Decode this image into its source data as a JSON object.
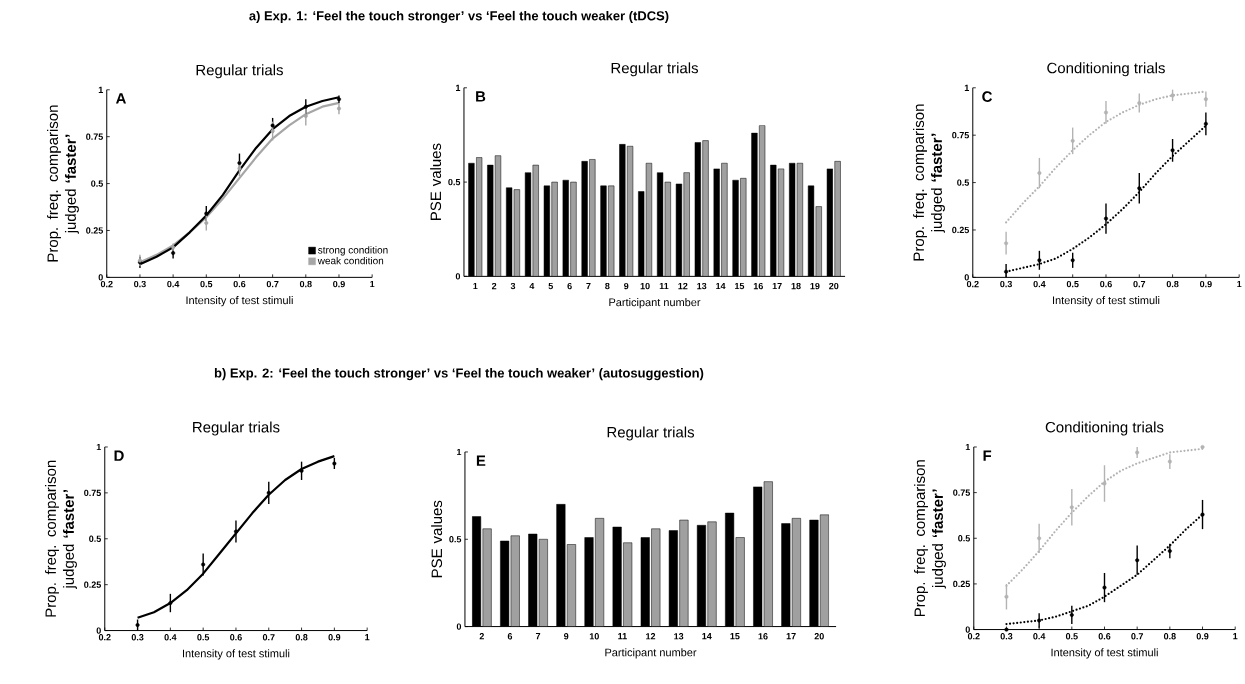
{
  "chart_data": [
    {
      "type": "scatter",
      "title": "Regular trials",
      "subtitle": "a) Exp. 1: ‘Feel the touch stronger’ vs ‘Feel the touch weaker (tDCS)",
      "xlabel": "Intensity of test stimuli",
      "ylabel": "Prop. freq. comparison judged **‘faster’**",
      "annotations": [
        "A"
      ],
      "x": [
        0.3,
        0.4,
        0.5,
        0.6,
        0.7,
        0.8,
        0.9
      ],
      "xlim": [
        0.2,
        1
      ],
      "ylim": [
        0,
        1
      ],
      "xticks": [
        0.2,
        0.3,
        0.4,
        0.5,
        0.6,
        0.7,
        0.8,
        0.9,
        1
      ],
      "yticks": [
        0,
        0.25,
        0.5,
        0.75,
        1
      ],
      "legend": "bottom right",
      "series": [
        {
          "type": "line",
          "marker": "none",
          "color": "#a6a6a6",
          "line_style": "solid",
          "x": [
            0.3,
            0.35,
            0.4,
            0.45,
            0.5,
            0.55,
            0.6,
            0.65,
            0.7,
            0.75,
            0.8,
            0.85,
            0.9
          ],
          "values": [
            0.08,
            0.12,
            0.17,
            0.24,
            0.32,
            0.42,
            0.53,
            0.64,
            0.74,
            0.81,
            0.87,
            0.91,
            0.93
          ]
        },
        {
          "type": "line",
          "marker": "none",
          "color": "#000000",
          "line_style": "solid",
          "x": [
            0.3,
            0.35,
            0.4,
            0.45,
            0.5,
            0.55,
            0.6,
            0.65,
            0.7,
            0.75,
            0.8,
            0.85,
            0.9
          ],
          "values": [
            0.07,
            0.11,
            0.16,
            0.24,
            0.33,
            0.44,
            0.57,
            0.69,
            0.79,
            0.86,
            0.91,
            0.94,
            0.96
          ]
        },
        {
          "name": "strong condition",
          "marker": "circle",
          "color": "#000000",
          "values": [
            0.08,
            0.13,
            0.34,
            0.61,
            0.81,
            0.91,
            0.95
          ],
          "errors": [
            0.03,
            0.03,
            0.04,
            0.05,
            0.04,
            0.04,
            0.02
          ]
        },
        {
          "name": "weak condition",
          "marker": "circle",
          "color": "#a6a6a6",
          "values": [
            0.09,
            0.16,
            0.29,
            0.58,
            0.78,
            0.86,
            0.9
          ],
          "errors": [
            0.03,
            0.02,
            0.04,
            0.04,
            0.05,
            0.05,
            0.03
          ]
        }
      ]
    },
    {
      "type": "bar",
      "title": "Regular trials",
      "xlabel": "Participant number",
      "ylabel": "PSE values",
      "annotations": [
        "B"
      ],
      "ylim": [
        0,
        1
      ],
      "yticks": [
        0,
        0.5,
        1
      ],
      "categories": [
        "1",
        "2",
        "3",
        "4",
        "5",
        "6",
        "7",
        "8",
        "9",
        "10",
        "11",
        "12",
        "13",
        "14",
        "15",
        "16",
        "17",
        "18",
        "19",
        "20"
      ],
      "series": [
        {
          "color": "#000000",
          "values": [
            0.6,
            0.59,
            0.47,
            0.55,
            0.48,
            0.51,
            0.61,
            0.48,
            0.7,
            0.45,
            0.55,
            0.49,
            0.71,
            0.57,
            0.51,
            0.76,
            0.59,
            0.6,
            0.48,
            0.57
          ]
        },
        {
          "color": "#a0a0a0",
          "values": [
            0.63,
            0.64,
            0.46,
            0.59,
            0.5,
            0.5,
            0.62,
            0.48,
            0.69,
            0.6,
            0.5,
            0.55,
            0.72,
            0.6,
            0.52,
            0.8,
            0.57,
            0.6,
            0.37,
            0.61
          ]
        }
      ]
    },
    {
      "type": "scatter",
      "title": "Conditioning trials",
      "xlabel": "Intensity of test stimuli",
      "ylabel": "Prop. freq. comparison judged **‘faster’**",
      "annotations": [
        "C"
      ],
      "x": [
        0.3,
        0.4,
        0.5,
        0.6,
        0.7,
        0.8,
        0.9
      ],
      "xlim": [
        0.2,
        1
      ],
      "ylim": [
        0,
        1
      ],
      "xticks": [
        0.2,
        0.3,
        0.4,
        0.5,
        0.6,
        0.7,
        0.8,
        0.9,
        1
      ],
      "yticks": [
        0,
        0.25,
        0.5,
        0.75,
        1
      ],
      "series": [
        {
          "type": "line",
          "marker": "none",
          "color": "#b3b3b3",
          "line_style": "dotted",
          "x": [
            0.3,
            0.35,
            0.4,
            0.45,
            0.5,
            0.55,
            0.6,
            0.65,
            0.7,
            0.75,
            0.8,
            0.85,
            0.9
          ],
          "values": [
            0.29,
            0.39,
            0.48,
            0.58,
            0.67,
            0.75,
            0.82,
            0.87,
            0.91,
            0.94,
            0.96,
            0.97,
            0.98
          ]
        },
        {
          "type": "line",
          "marker": "none",
          "color": "#000000",
          "line_style": "dotted",
          "x": [
            0.3,
            0.35,
            0.4,
            0.45,
            0.5,
            0.55,
            0.6,
            0.65,
            0.7,
            0.75,
            0.8,
            0.85,
            0.9
          ],
          "values": [
            0.03,
            0.05,
            0.07,
            0.1,
            0.15,
            0.21,
            0.28,
            0.36,
            0.45,
            0.55,
            0.64,
            0.72,
            0.8
          ]
        },
        {
          "marker": "circle",
          "color": "#b3b3b3",
          "values": [
            0.18,
            0.55,
            0.72,
            0.87,
            0.92,
            0.96,
            0.94
          ],
          "errors": [
            0.06,
            0.08,
            0.07,
            0.06,
            0.05,
            0.03,
            0.04
          ]
        },
        {
          "marker": "circle",
          "color": "#000000",
          "values": [
            0.03,
            0.09,
            0.09,
            0.31,
            0.47,
            0.67,
            0.81
          ],
          "errors": [
            0.04,
            0.05,
            0.04,
            0.08,
            0.08,
            0.06,
            0.06
          ]
        }
      ]
    },
    {
      "type": "scatter",
      "title": "Regular trials",
      "subtitle": "b) Exp. 2: ‘Feel the touch stronger’ vs ‘Feel the touch weaker’ (autosuggestion)",
      "xlabel": "Intensity of test stimuli",
      "ylabel": "Prop. freq. comparison judged **‘faster’**",
      "annotations": [
        "D"
      ],
      "x": [
        0.3,
        0.4,
        0.5,
        0.6,
        0.7,
        0.8,
        0.9
      ],
      "xlim": [
        0.2,
        1
      ],
      "ylim": [
        0,
        1
      ],
      "xticks": [
        0.2,
        0.3,
        0.4,
        0.5,
        0.6,
        0.7,
        0.8,
        0.9,
        1
      ],
      "yticks": [
        0,
        0.25,
        0.5,
        0.75,
        1
      ],
      "series": [
        {
          "type": "line",
          "marker": "none",
          "color": "#000000",
          "line_style": "solid",
          "x": [
            0.3,
            0.35,
            0.4,
            0.45,
            0.5,
            0.55,
            0.6,
            0.65,
            0.7,
            0.75,
            0.8,
            0.85,
            0.9
          ],
          "values": [
            0.07,
            0.1,
            0.15,
            0.22,
            0.31,
            0.42,
            0.53,
            0.64,
            0.74,
            0.82,
            0.88,
            0.92,
            0.95
          ]
        },
        {
          "marker": "circle",
          "color": "#000000",
          "values": [
            0.03,
            0.15,
            0.36,
            0.54,
            0.75,
            0.87,
            0.91
          ],
          "errors": [
            0.03,
            0.05,
            0.06,
            0.06,
            0.06,
            0.05,
            0.03
          ]
        }
      ]
    },
    {
      "type": "bar",
      "title": "Regular trials",
      "xlabel": "Participant number",
      "ylabel": "PSE values",
      "annotations": [
        "E"
      ],
      "ylim": [
        0,
        1
      ],
      "yticks": [
        0,
        0.5,
        1
      ],
      "categories": [
        "2",
        "6",
        "7",
        "9",
        "10",
        "11",
        "12",
        "13",
        "14",
        "15",
        "16",
        "17",
        "20"
      ],
      "series": [
        {
          "color": "#000000",
          "values": [
            0.63,
            0.49,
            0.53,
            0.7,
            0.51,
            0.57,
            0.51,
            0.55,
            0.58,
            0.65,
            0.8,
            0.59,
            0.61
          ]
        },
        {
          "color": "#a0a0a0",
          "values": [
            0.56,
            0.52,
            0.5,
            0.47,
            0.62,
            0.48,
            0.56,
            0.61,
            0.6,
            0.51,
            0.83,
            0.62,
            0.64
          ]
        }
      ]
    },
    {
      "type": "scatter",
      "title": "Conditioning trials",
      "xlabel": "Intensity of test stimuli",
      "ylabel": "Prop. freq. comparison judged **‘faster’**",
      "annotations": [
        "F"
      ],
      "x": [
        0.3,
        0.4,
        0.5,
        0.6,
        0.7,
        0.8,
        0.9
      ],
      "xlim": [
        0.2,
        1
      ],
      "ylim": [
        0,
        1
      ],
      "xticks": [
        0.2,
        0.3,
        0.4,
        0.5,
        0.6,
        0.7,
        0.8,
        0.9,
        1
      ],
      "yticks": [
        0,
        0.25,
        0.5,
        0.75,
        1
      ],
      "series": [
        {
          "type": "line",
          "marker": "none",
          "color": "#b3b3b3",
          "line_style": "dotted",
          "x": [
            0.3,
            0.35,
            0.4,
            0.45,
            0.5,
            0.55,
            0.6,
            0.65,
            0.7,
            0.75,
            0.8,
            0.85,
            0.9
          ],
          "values": [
            0.24,
            0.33,
            0.43,
            0.54,
            0.64,
            0.73,
            0.81,
            0.87,
            0.91,
            0.94,
            0.97,
            0.98,
            0.99
          ]
        },
        {
          "type": "line",
          "marker": "none",
          "color": "#000000",
          "line_style": "dotted",
          "x": [
            0.3,
            0.35,
            0.4,
            0.45,
            0.5,
            0.55,
            0.6,
            0.65,
            0.7,
            0.75,
            0.8,
            0.85,
            0.9
          ],
          "values": [
            0.03,
            0.04,
            0.05,
            0.07,
            0.1,
            0.13,
            0.18,
            0.24,
            0.3,
            0.38,
            0.46,
            0.55,
            0.63
          ]
        },
        {
          "marker": "circle",
          "color": "#b3b3b3",
          "values": [
            0.18,
            0.5,
            0.67,
            0.8,
            0.97,
            0.92,
            1
          ],
          "errors": [
            0.07,
            0.08,
            0.1,
            0.1,
            0.03,
            0.04,
            null
          ]
        },
        {
          "marker": "circle",
          "color": "#000000",
          "values": [
            0,
            0.05,
            0.08,
            0.23,
            0.38,
            0.43,
            0.63
          ],
          "errors": [
            null,
            0.04,
            0.05,
            0.08,
            0.08,
            0.04,
            0.08
          ]
        }
      ]
    }
  ]
}
